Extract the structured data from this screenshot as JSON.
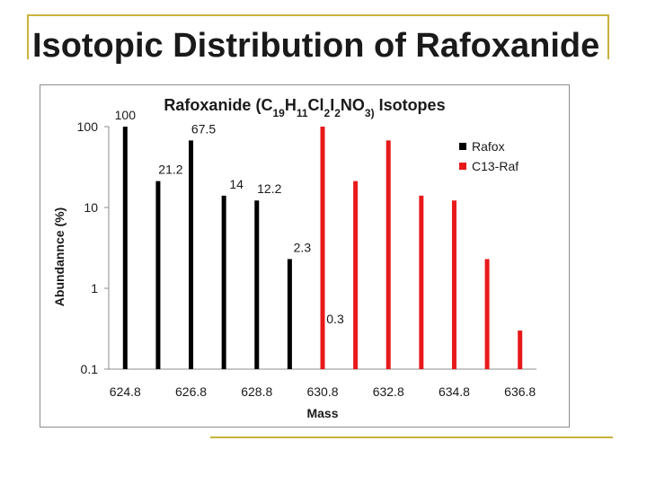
{
  "slide": {
    "title": "Isotopic Distribution of Rafoxanide"
  },
  "colors": {
    "frame": "#c8b23a",
    "rafox": "#000000",
    "c13_raf": "#e8191b"
  },
  "chart_data": {
    "type": "bar",
    "scale": "log",
    "title_parts": [
      {
        "t": "Rafoxanide (C",
        "sub": false
      },
      {
        "t": "19",
        "sub": true
      },
      {
        "t": "H",
        "sub": false
      },
      {
        "t": "11",
        "sub": true
      },
      {
        "t": "Cl",
        "sub": false
      },
      {
        "t": "2",
        "sub": true
      },
      {
        "t": "I",
        "sub": false
      },
      {
        "t": "2",
        "sub": true
      },
      {
        "t": "NO",
        "sub": false
      },
      {
        "t": "3)",
        "sub": true
      },
      {
        "t": " Isotopes",
        "sub": false
      }
    ],
    "xlabel": "Mass",
    "ylabel": "Abundannce (%)",
    "ylim": [
      0.1,
      100
    ],
    "yticks": [
      {
        "value": 0.1,
        "label": "0.1"
      },
      {
        "value": 1,
        "label": "1"
      },
      {
        "value": 10,
        "label": "10"
      },
      {
        "value": 100,
        "label": "100"
      }
    ],
    "xlim": [
      624.3,
      637.3
    ],
    "xticks": [
      "624.8",
      "626.8",
      "628.8",
      "630.8",
      "632.8",
      "634.8",
      "636.8"
    ],
    "grid": false,
    "legend_position": "top-right",
    "series": [
      {
        "name": "Rafox",
        "color": "#000000",
        "points": [
          {
            "x": 624.8,
            "y": 100,
            "label": "100"
          },
          {
            "x": 625.8,
            "y": 21.2,
            "label": "21.2"
          },
          {
            "x": 626.8,
            "y": 67.5,
            "label": "67.5"
          },
          {
            "x": 627.8,
            "y": 14,
            "label": "14"
          },
          {
            "x": 628.8,
            "y": 12.2,
            "label": "12.2"
          },
          {
            "x": 629.8,
            "y": 2.3,
            "label": "2.3"
          },
          {
            "x": 630.8,
            "y": 0.3,
            "label": "0.3"
          }
        ]
      },
      {
        "name": "C13-Raf",
        "color": "#e8191b",
        "points": [
          {
            "x": 630.8,
            "y": 100
          },
          {
            "x": 631.8,
            "y": 21.2
          },
          {
            "x": 632.8,
            "y": 67.5
          },
          {
            "x": 633.8,
            "y": 14
          },
          {
            "x": 634.8,
            "y": 12.2
          },
          {
            "x": 635.8,
            "y": 2.3
          },
          {
            "x": 636.8,
            "y": 0.3
          }
        ]
      }
    ]
  }
}
